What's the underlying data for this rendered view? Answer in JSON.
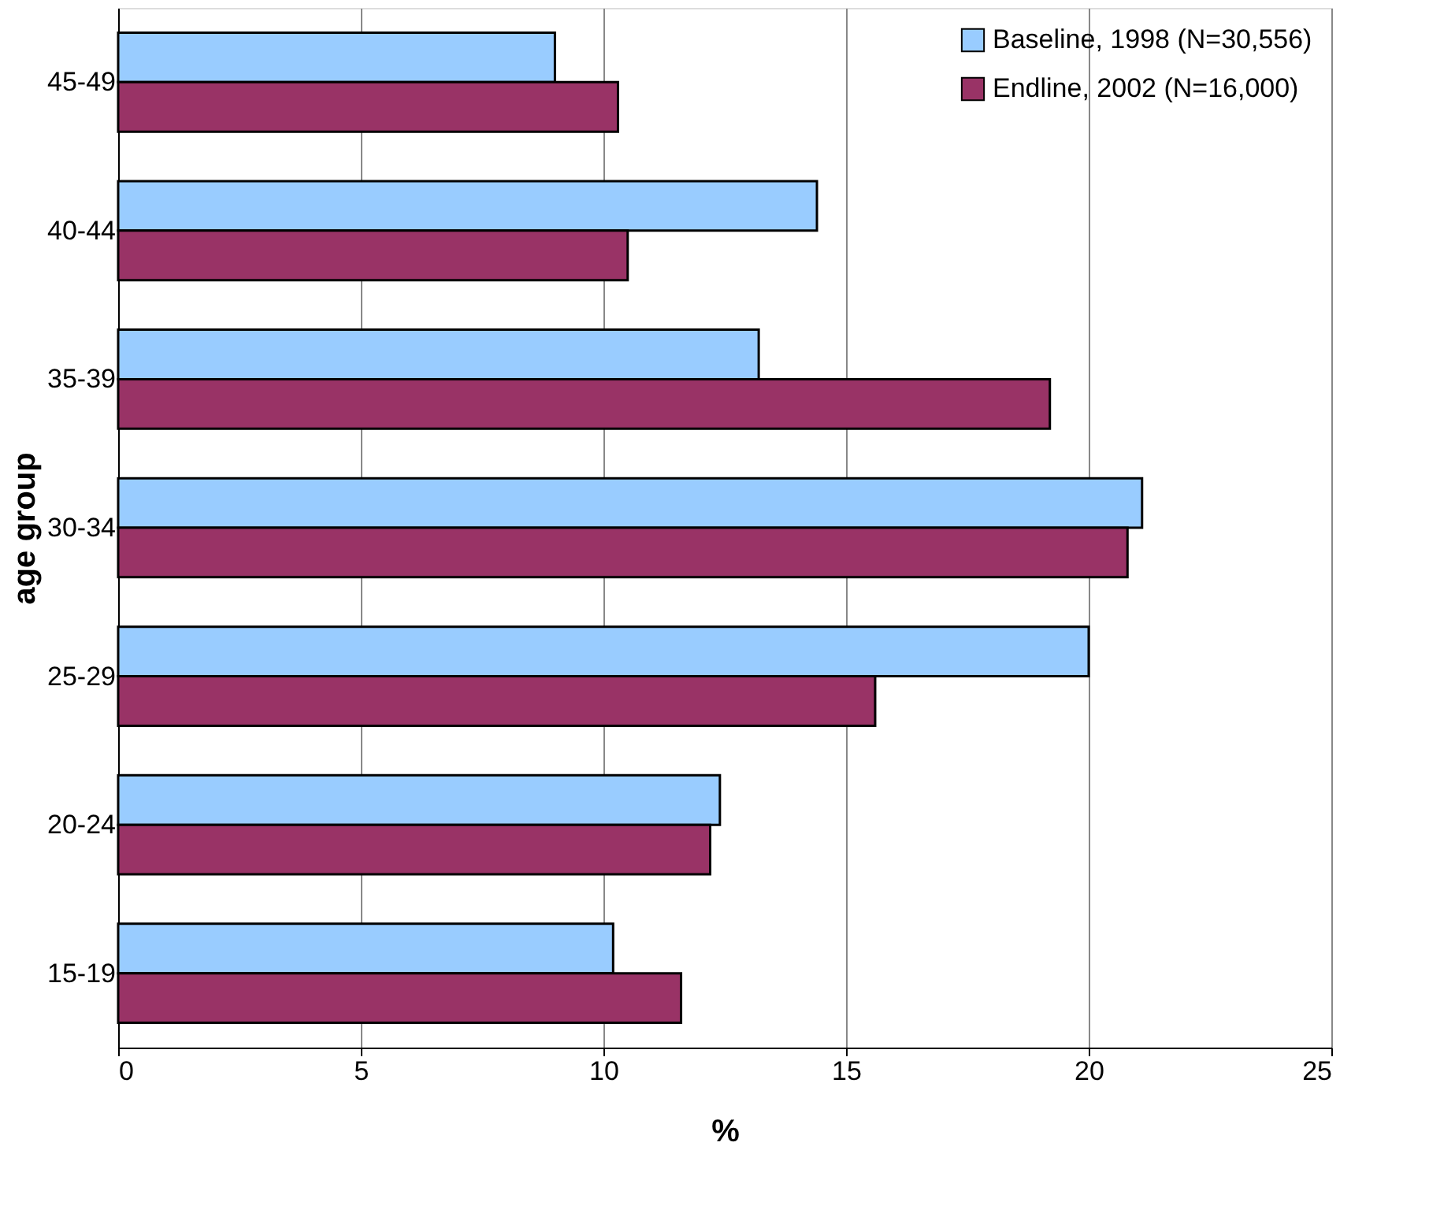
{
  "chart_data": {
    "type": "bar",
    "orientation": "horizontal",
    "xlabel": "%",
    "ylabel": "age group",
    "categories": [
      "45-49",
      "40-44",
      "35-39",
      "30-34",
      "25-29",
      "20-24",
      "15-19"
    ],
    "series": [
      {
        "name": "Baseline, 1998 (N=30,556)",
        "color": "#99ccff",
        "values": [
          9.0,
          14.4,
          13.2,
          21.1,
          20.0,
          12.4,
          10.2
        ]
      },
      {
        "name": "Endline, 2002 (N=16,000)",
        "color": "#993366",
        "values": [
          10.3,
          10.5,
          19.2,
          20.8,
          15.6,
          12.2,
          11.6
        ]
      }
    ],
    "xlim": [
      0,
      25
    ],
    "xticks": [
      0,
      5,
      10,
      15,
      20,
      25
    ],
    "grid": "x",
    "legend": "top right"
  }
}
